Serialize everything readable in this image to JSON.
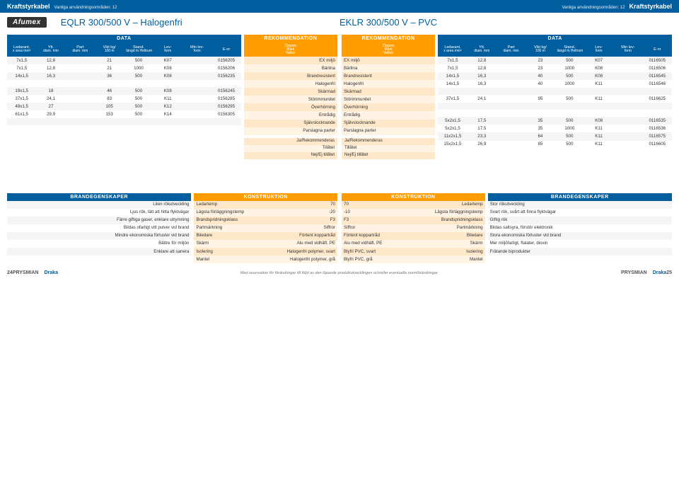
{
  "header": {
    "left_title": "Kraftstyrkabel",
    "left_sub": "Vanliga användningsområden: 12",
    "right_sub": "Vanliga användningsområden: 12",
    "right_title": "Kraftstyrkabel"
  },
  "titles": {
    "logo": "Afumex",
    "left": "EQLR 300/500 V – Halogenfri",
    "right": "EKLR 300/500 V – PVC"
  },
  "section_labels": {
    "data": "DATA",
    "rekommendation": "REKOMMENDATION",
    "brandegenskaper": "BRANDEGENSKAPER",
    "konstruktion": "KONSTRUKTION"
  },
  "data_headers": [
    {
      "t": "Ledarant.",
      "s": "x area mm²"
    },
    {
      "t": "Ytt.",
      "s": "diam. mm"
    },
    {
      "t": "Part",
      "s": "diam. mm"
    },
    {
      "t": "Vikt kg/",
      "s": "100 m"
    },
    {
      "t": "Stand.",
      "s": "längd m Heltrum"
    },
    {
      "t": "Lev-",
      "s": "form"
    },
    {
      "t": "Min lev-",
      "s": "form"
    },
    {
      "t": "E-nr",
      "s": ""
    }
  ],
  "left_data_rows": [
    [
      "7x1,5",
      "12,8",
      "",
      "21",
      "500",
      "K07",
      "",
      "0156205"
    ],
    [
      "7x1,5",
      "12,8",
      "",
      "21",
      "1000",
      "K08",
      "",
      "0156206"
    ],
    [
      "14x1,5",
      "16,3",
      "",
      "36",
      "500",
      "K08",
      "",
      "0156235"
    ],
    [
      "",
      "",
      "",
      "",
      "",
      "",
      "",
      ""
    ],
    [
      "19x1,5",
      "18",
      "",
      "46",
      "500",
      "K08",
      "",
      "0156245"
    ],
    [
      "37x1,5",
      "24,1",
      "",
      "83",
      "500",
      "K11",
      "",
      "0156285"
    ],
    [
      "48x1,5",
      "27",
      "",
      "105",
      "500",
      "K12",
      "",
      "0156295"
    ],
    [
      "61x1,5",
      "29,9",
      "",
      "153",
      "500",
      "K14",
      "",
      "0156305"
    ],
    [
      "",
      "",
      "",
      "",
      "",
      "",
      "",
      ""
    ],
    [
      "",
      "",
      "",
      "",
      "",
      "",
      "",
      ""
    ]
  ],
  "rec_header": [
    "Öppen",
    "Mark",
    "Vatten"
  ],
  "rec_labels": [
    "EX miljö",
    "Bärlina",
    "Brandresistent",
    "Halogenfri",
    "Skärmad",
    "Störimmunitet",
    "Överhörning",
    "Entrådig",
    "Självslocknande",
    "Parslagna parter"
  ],
  "right_data_rows": [
    [
      "7x1,5",
      "12,8",
      "",
      "23",
      "500",
      "K07",
      "",
      "0116505"
    ],
    [
      "7x1,5",
      "12,8",
      "",
      "23",
      "1000",
      "K08",
      "",
      "0116506"
    ],
    [
      "14x1,5",
      "16,3",
      "",
      "40",
      "500",
      "K08",
      "",
      "0116545"
    ],
    [
      "14x1,5",
      "16,3",
      "",
      "40",
      "1000",
      "K11",
      "",
      "0116546"
    ],
    [
      "",
      "",
      "",
      "",
      "",
      "",
      "",
      ""
    ],
    [
      "37x1,5",
      "24,1",
      "",
      "95",
      "500",
      "K11",
      "",
      "0116625"
    ],
    [
      "",
      "",
      "",
      "",
      "",
      "",
      "",
      ""
    ],
    [
      "",
      "",
      "",
      "",
      "",
      "",
      "",
      ""
    ],
    [
      "5x2x1,5",
      "17,5",
      "",
      "35",
      "500",
      "K08",
      "",
      "0116535"
    ],
    [
      "5x2x1,5",
      "17,5",
      "",
      "35",
      "1000",
      "K11",
      "",
      "0116536"
    ],
    [
      "11x2x1,5",
      "23,3",
      "",
      "64",
      "500",
      "K11",
      "",
      "0116575"
    ],
    [
      "15x2x1,5",
      "26,9",
      "",
      "85",
      "500",
      "K11",
      "",
      "0116605"
    ]
  ],
  "legend": [
    "Ja/Rekommenderas",
    "Tillåtet",
    "Nej/Ej tillåtet"
  ],
  "left_brand_rows": [
    [
      "Liten rökutveckling",
      ""
    ],
    [
      "Ljus rök, lätt att hitta flyktvägar",
      ""
    ],
    [
      "Färre giftiga gaser, enklare utrymning",
      ""
    ],
    [
      "Bildas ofarligt vitt pulver vid brand",
      ""
    ],
    [
      "Mindre ekonomiska förluster vid brand",
      ""
    ],
    [
      "Bättre för miljön",
      ""
    ],
    [
      "Enklare att sanera",
      ""
    ]
  ],
  "left_kons_rows": [
    [
      "Ledartemp",
      "70"
    ],
    [
      "Lägsta förläggningstemp",
      "-20"
    ],
    [
      "Brandspridningsklass",
      "F3"
    ],
    [
      "Partmärkning",
      "Siffror"
    ],
    [
      "Biledare",
      "Förtent koppartråd"
    ],
    [
      "Skärm",
      "Alu med vidhäft. PE"
    ],
    [
      "Isolering",
      "Halogenfri polymer, svart"
    ],
    [
      "Mantel",
      "Halogenfri polymer, grå"
    ]
  ],
  "right_kons_rows": [
    [
      "70",
      "Ledartemp"
    ],
    [
      "-10",
      "Lägsta förläggningstemp"
    ],
    [
      "F3",
      "Brandspridningsklass"
    ],
    [
      "Siffror",
      "Partmärkning"
    ],
    [
      "Förtent koppartråd",
      "Biledare"
    ],
    [
      "Alu med vidhäft. PE",
      "Skärm"
    ],
    [
      "Blyfri PVC, svart",
      "Isolering"
    ],
    [
      "Blyfri PVC, grå",
      "Mantel"
    ]
  ],
  "right_brand_rows": [
    [
      "",
      "Stor rökutveckling"
    ],
    [
      "",
      "Svart rök, svårt att finna flyktvägar"
    ],
    [
      "",
      "Giftig rök"
    ],
    [
      "",
      "Bildas saltsyra, förstör elektronik"
    ],
    [
      "",
      "Stora ekonomiska förluster vid brand"
    ],
    [
      "",
      "Mer miljöfarligt, ftalater, dioxin"
    ],
    [
      "",
      "Frätande biprodukter"
    ]
  ],
  "footer": {
    "brand1": "PRYSMIAN",
    "brand2": "Draka",
    "disclaimer": "Med reservation för förändringar till följd av den löpande produktutvecklingen och/eller eventuella normförändringar.",
    "page_left": "24",
    "page_right": "25"
  },
  "colors": {
    "blue": "#005e9e",
    "orange": "#ff9d00",
    "stripe_grey": "#f5f5f5",
    "stripe_orange_a": "#ffe8c9",
    "stripe_orange_b": "#fff3e3"
  }
}
